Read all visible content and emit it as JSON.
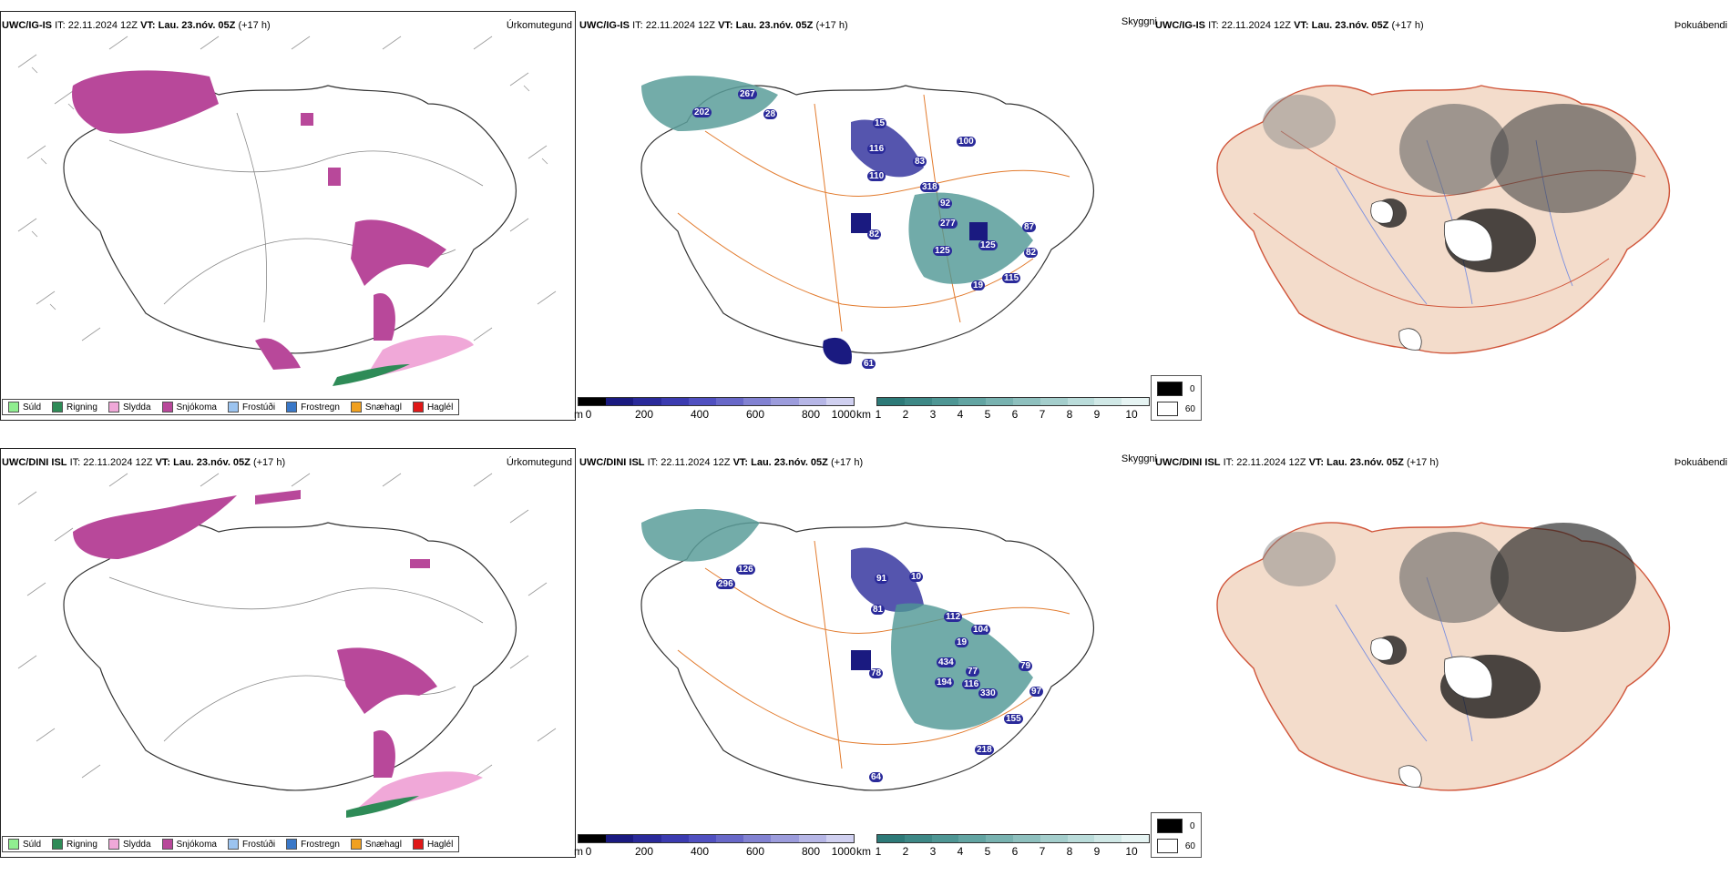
{
  "rows": [
    {
      "model": "UWC/IG-IS",
      "it_label": "IT:",
      "it": "22.11.2024 12Z",
      "vt_label": "VT:",
      "vt": "Lau. 23.nóv. 05Z",
      "lead": "(+17 h)"
    },
    {
      "model": "UWC/DINI ISL",
      "it_label": "IT:",
      "it": "22.11.2024 12Z",
      "vt_label": "VT:",
      "vt": "Lau. 23.nóv. 05Z",
      "lead": "(+17 h)"
    }
  ],
  "panel_titles": {
    "precip_type": "Úrkomutegund",
    "visibility": "Skyggni",
    "fog": "Þokuábendi"
  },
  "precip_legend": [
    {
      "label": "Súld",
      "color": "#90ee90"
    },
    {
      "label": "Rigning",
      "color": "#2e8b57"
    },
    {
      "label": "Slydda",
      "color": "#f0a8d8"
    },
    {
      "label": "Snjókoma",
      "color": "#b8489a"
    },
    {
      "label": "Frostúði",
      "color": "#9cc4f0"
    },
    {
      "label": "Frostregn",
      "color": "#3a78c8"
    },
    {
      "label": "Snæhagl",
      "color": "#f0a020"
    },
    {
      "label": "Haglél",
      "color": "#e01818"
    }
  ],
  "height_bar": {
    "unit": "m",
    "ticks": [
      "0",
      "200",
      "400",
      "600",
      "800",
      "1000"
    ],
    "colors": [
      "#000000",
      "#1a1a80",
      "#2a2a9a",
      "#3b3bb0",
      "#5050c0",
      "#6868c8",
      "#8282d2",
      "#9c9cdc",
      "#b6b6e6",
      "#d0d0f0"
    ]
  },
  "km_bar": {
    "unit": "km",
    "ticks": [
      "1",
      "2",
      "3",
      "4",
      "5",
      "6",
      "7",
      "8",
      "9",
      "10"
    ],
    "colors": [
      "#2d7a78",
      "#3d8886",
      "#4e9694",
      "#62a4a2",
      "#78b2b0",
      "#8ec0be",
      "#a4cecc",
      "#badcda",
      "#d0e8e6",
      "#e6f4f3"
    ]
  },
  "fog_legend": [
    {
      "label": "0",
      "color": "#000000"
    },
    {
      "label": "60",
      "color": "#ffffff"
    }
  ],
  "station_labels_top": [
    "267",
    "202",
    "28",
    "15",
    "116",
    "110",
    "318",
    "83",
    "92",
    "100",
    "82",
    "277",
    "125",
    "125",
    "87",
    "82",
    "19",
    "115",
    "61"
  ],
  "station_labels_bottom": [
    "296",
    "126",
    "91",
    "10",
    "81",
    "112",
    "19",
    "104",
    "77",
    "78",
    "434",
    "194",
    "116",
    "330",
    "79",
    "97",
    "155",
    "218",
    "64"
  ],
  "colors": {
    "snow": "#b8489a",
    "sleet": "#f0a8d8",
    "rain": "#2e8b57",
    "land": "#f3dccb",
    "roads": "#e27a2c",
    "rivers": "#7a8fe0"
  }
}
